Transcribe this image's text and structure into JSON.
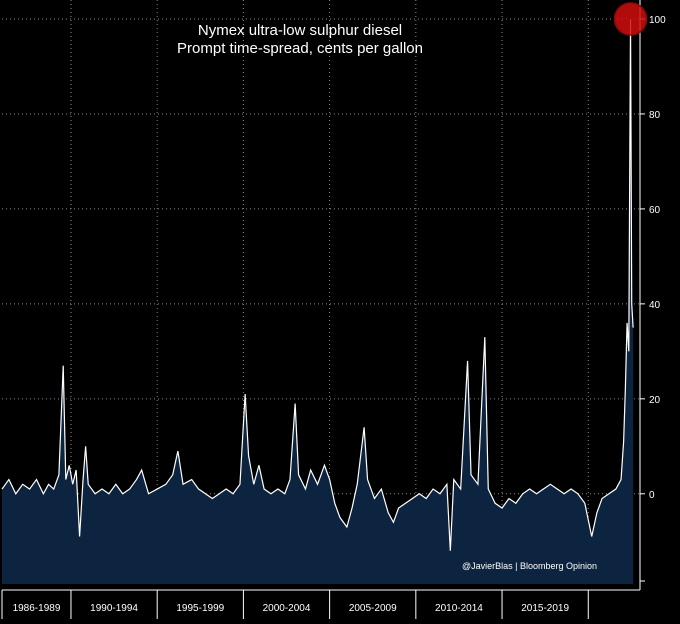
{
  "chart_data": {
    "type": "area",
    "title": "Nymex ultra-low sulphur diesel",
    "subtitle": "Prompt time-spread, cents per gallon",
    "ylim": [
      -19,
      104
    ],
    "yticks": [
      0,
      20,
      40,
      60,
      80,
      100
    ],
    "grid": true,
    "x_tick_labels": [
      "1986-1989",
      "1990-1994",
      "1995-1999",
      "2000-2004",
      "2005-2009",
      "2010-2014",
      "2015-2019"
    ],
    "x_range": [
      1986.0,
      2023.0
    ],
    "series": [
      {
        "values": [
          [
            1986.0,
            1
          ],
          [
            1986.4,
            3
          ],
          [
            1986.8,
            0
          ],
          [
            1987.2,
            2
          ],
          [
            1987.6,
            1
          ],
          [
            1988.0,
            3
          ],
          [
            1988.4,
            0
          ],
          [
            1988.7,
            2
          ],
          [
            1989.0,
            1
          ],
          [
            1989.3,
            4
          ],
          [
            1989.55,
            27
          ],
          [
            1989.7,
            3
          ],
          [
            1989.9,
            6
          ],
          [
            1990.1,
            2
          ],
          [
            1990.3,
            5
          ],
          [
            1990.5,
            -9
          ],
          [
            1990.7,
            3
          ],
          [
            1990.85,
            10
          ],
          [
            1991.0,
            2
          ],
          [
            1991.4,
            0
          ],
          [
            1991.8,
            1
          ],
          [
            1992.2,
            0
          ],
          [
            1992.6,
            2
          ],
          [
            1993.0,
            0
          ],
          [
            1993.4,
            1
          ],
          [
            1993.8,
            3
          ],
          [
            1994.1,
            5
          ],
          [
            1994.5,
            0
          ],
          [
            1995.0,
            1
          ],
          [
            1995.5,
            2
          ],
          [
            1995.9,
            4
          ],
          [
            1996.2,
            9
          ],
          [
            1996.5,
            2
          ],
          [
            1997.0,
            3
          ],
          [
            1997.4,
            1
          ],
          [
            1997.8,
            0
          ],
          [
            1998.2,
            -1
          ],
          [
            1998.6,
            0
          ],
          [
            1999.0,
            1
          ],
          [
            1999.4,
            0
          ],
          [
            1999.8,
            2
          ],
          [
            2000.1,
            21
          ],
          [
            2000.3,
            8
          ],
          [
            2000.6,
            2
          ],
          [
            2000.9,
            6
          ],
          [
            2001.2,
            1
          ],
          [
            2001.6,
            0
          ],
          [
            2002.0,
            1
          ],
          [
            2002.4,
            0
          ],
          [
            2002.7,
            3
          ],
          [
            2003.0,
            19
          ],
          [
            2003.2,
            4
          ],
          [
            2003.6,
            1
          ],
          [
            2003.9,
            5
          ],
          [
            2004.3,
            2
          ],
          [
            2004.7,
            6
          ],
          [
            2005.0,
            3
          ],
          [
            2005.3,
            -2
          ],
          [
            2005.6,
            -5
          ],
          [
            2006.0,
            -7
          ],
          [
            2006.3,
            -3
          ],
          [
            2006.6,
            2
          ],
          [
            2007.0,
            14
          ],
          [
            2007.2,
            3
          ],
          [
            2007.6,
            -1
          ],
          [
            2008.0,
            1
          ],
          [
            2008.4,
            -4
          ],
          [
            2008.7,
            -6
          ],
          [
            2009.0,
            -3
          ],
          [
            2009.4,
            -2
          ],
          [
            2009.8,
            -1
          ],
          [
            2010.2,
            0
          ],
          [
            2010.6,
            -1
          ],
          [
            2011.0,
            1
          ],
          [
            2011.4,
            0
          ],
          [
            2011.8,
            2
          ],
          [
            2012.0,
            -12
          ],
          [
            2012.2,
            3
          ],
          [
            2012.6,
            1
          ],
          [
            2013.0,
            28
          ],
          [
            2013.2,
            4
          ],
          [
            2013.6,
            2
          ],
          [
            2014.0,
            33
          ],
          [
            2014.2,
            1
          ],
          [
            2014.6,
            -2
          ],
          [
            2015.0,
            -3
          ],
          [
            2015.4,
            -1
          ],
          [
            2015.8,
            -2
          ],
          [
            2016.2,
            0
          ],
          [
            2016.6,
            1
          ],
          [
            2017.0,
            0
          ],
          [
            2017.4,
            1
          ],
          [
            2017.8,
            2
          ],
          [
            2018.2,
            1
          ],
          [
            2018.6,
            0
          ],
          [
            2019.0,
            1
          ],
          [
            2019.4,
            0
          ],
          [
            2019.8,
            -2
          ],
          [
            2020.2,
            -9
          ],
          [
            2020.5,
            -4
          ],
          [
            2020.8,
            -1
          ],
          [
            2021.2,
            0
          ],
          [
            2021.6,
            1
          ],
          [
            2021.9,
            3
          ],
          [
            2022.05,
            11
          ],
          [
            2022.15,
            22
          ],
          [
            2022.25,
            36
          ],
          [
            2022.35,
            30
          ],
          [
            2022.45,
            100
          ],
          [
            2022.52,
            40
          ],
          [
            2022.6,
            35
          ]
        ]
      }
    ],
    "colors": {
      "area_fill": "#0d2440",
      "line": "#ffffff",
      "grid": "#8a8a8a",
      "marker": "#d10d0d"
    },
    "annotation": {
      "type": "circle-marker",
      "x": 2022.45,
      "y": 100
    }
  },
  "credit": "@JavierBlas | Bloomberg Opinion"
}
